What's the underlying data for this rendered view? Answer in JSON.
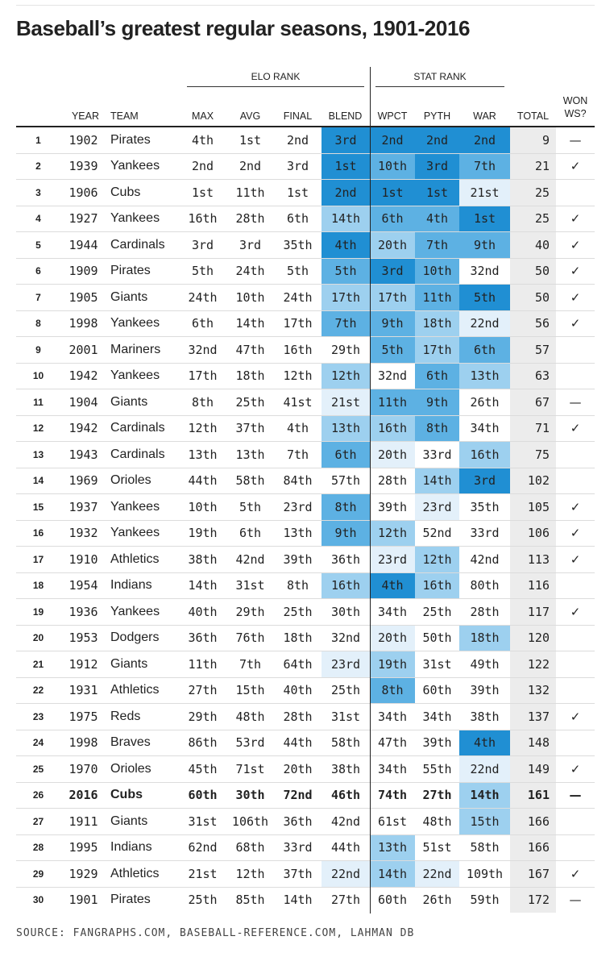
{
  "title": "Baseball’s greatest regular seasons, 1901-2016",
  "groups": {
    "elo": "ELO RANK",
    "stat": "STAT RANK"
  },
  "headers": {
    "year": "YEAR",
    "team": "TEAM",
    "max": "MAX",
    "avg": "AVG",
    "final": "FINAL",
    "blend": "BLEND",
    "wpct": "WPCT",
    "pyth": "PYTH",
    "war": "WAR",
    "total": "TOTAL",
    "won_ws": "WON\nWS?"
  },
  "shade_colors": [
    "#ffffff",
    "#e3f0fa",
    "#9dd0ef",
    "#5db1e3",
    "#208fd3"
  ],
  "rows": [
    {
      "rank": "1",
      "year": "1902",
      "team": "Pirates",
      "max": "4th",
      "avg": "1st",
      "final": "2nd",
      "blend": "3rd",
      "wpct": "2nd",
      "pyth": "2nd",
      "war": "2nd",
      "total": "9",
      "ws": "—",
      "shade": [
        4,
        4,
        4,
        4
      ]
    },
    {
      "rank": "2",
      "year": "1939",
      "team": "Yankees",
      "max": "2nd",
      "avg": "2nd",
      "final": "3rd",
      "blend": "1st",
      "wpct": "10th",
      "pyth": "3rd",
      "war": "7th",
      "total": "21",
      "ws": "✓",
      "shade": [
        4,
        3,
        4,
        3
      ]
    },
    {
      "rank": "3",
      "year": "1906",
      "team": "Cubs",
      "max": "1st",
      "avg": "11th",
      "final": "1st",
      "blend": "2nd",
      "wpct": "1st",
      "pyth": "1st",
      "war": "21st",
      "total": "25",
      "ws": "",
      "shade": [
        4,
        4,
        4,
        1
      ]
    },
    {
      "rank": "4",
      "year": "1927",
      "team": "Yankees",
      "max": "16th",
      "avg": "28th",
      "final": "6th",
      "blend": "14th",
      "wpct": "6th",
      "pyth": "4th",
      "war": "1st",
      "total": "25",
      "ws": "✓",
      "shade": [
        2,
        3,
        3,
        4
      ]
    },
    {
      "rank": "5",
      "year": "1944",
      "team": "Cardinals",
      "max": "3rd",
      "avg": "3rd",
      "final": "35th",
      "blend": "4th",
      "wpct": "20th",
      "pyth": "7th",
      "war": "9th",
      "total": "40",
      "ws": "✓",
      "shade": [
        4,
        2,
        3,
        3
      ]
    },
    {
      "rank": "6",
      "year": "1909",
      "team": "Pirates",
      "max": "5th",
      "avg": "24th",
      "final": "5th",
      "blend": "5th",
      "wpct": "3rd",
      "pyth": "10th",
      "war": "32nd",
      "total": "50",
      "ws": "✓",
      "shade": [
        3,
        4,
        3,
        0
      ]
    },
    {
      "rank": "7",
      "year": "1905",
      "team": "Giants",
      "max": "24th",
      "avg": "10th",
      "final": "24th",
      "blend": "17th",
      "wpct": "17th",
      "pyth": "11th",
      "war": "5th",
      "total": "50",
      "ws": "✓",
      "shade": [
        2,
        2,
        3,
        4
      ]
    },
    {
      "rank": "8",
      "year": "1998",
      "team": "Yankees",
      "max": "6th",
      "avg": "14th",
      "final": "17th",
      "blend": "7th",
      "wpct": "9th",
      "pyth": "18th",
      "war": "22nd",
      "total": "56",
      "ws": "✓",
      "shade": [
        3,
        3,
        2,
        1
      ]
    },
    {
      "rank": "9",
      "year": "2001",
      "team": "Mariners",
      "max": "32nd",
      "avg": "47th",
      "final": "16th",
      "blend": "29th",
      "wpct": "5th",
      "pyth": "17th",
      "war": "6th",
      "total": "57",
      "ws": "",
      "shade": [
        0,
        3,
        2,
        3
      ]
    },
    {
      "rank": "10",
      "year": "1942",
      "team": "Yankees",
      "max": "17th",
      "avg": "18th",
      "final": "12th",
      "blend": "12th",
      "wpct": "32nd",
      "pyth": "6th",
      "war": "13th",
      "total": "63",
      "ws": "",
      "shade": [
        2,
        0,
        3,
        2
      ]
    },
    {
      "rank": "11",
      "year": "1904",
      "team": "Giants",
      "max": "8th",
      "avg": "25th",
      "final": "41st",
      "blend": "21st",
      "wpct": "11th",
      "pyth": "9th",
      "war": "26th",
      "total": "67",
      "ws": "—",
      "shade": [
        1,
        3,
        3,
        0
      ]
    },
    {
      "rank": "12",
      "year": "1942",
      "team": "Cardinals",
      "max": "12th",
      "avg": "37th",
      "final": "4th",
      "blend": "13th",
      "wpct": "16th",
      "pyth": "8th",
      "war": "34th",
      "total": "71",
      "ws": "✓",
      "shade": [
        2,
        2,
        3,
        0
      ]
    },
    {
      "rank": "13",
      "year": "1943",
      "team": "Cardinals",
      "max": "13th",
      "avg": "13th",
      "final": "7th",
      "blend": "6th",
      "wpct": "20th",
      "pyth": "33rd",
      "war": "16th",
      "total": "75",
      "ws": "",
      "shade": [
        3,
        1,
        0,
        2
      ]
    },
    {
      "rank": "14",
      "year": "1969",
      "team": "Orioles",
      "max": "44th",
      "avg": "58th",
      "final": "84th",
      "blend": "57th",
      "wpct": "28th",
      "pyth": "14th",
      "war": "3rd",
      "total": "102",
      "ws": "",
      "shade": [
        0,
        0,
        2,
        4
      ]
    },
    {
      "rank": "15",
      "year": "1937",
      "team": "Yankees",
      "max": "10th",
      "avg": "5th",
      "final": "23rd",
      "blend": "8th",
      "wpct": "39th",
      "pyth": "23rd",
      "war": "35th",
      "total": "105",
      "ws": "✓",
      "shade": [
        3,
        0,
        1,
        0
      ]
    },
    {
      "rank": "16",
      "year": "1932",
      "team": "Yankees",
      "max": "19th",
      "avg": "6th",
      "final": "13th",
      "blend": "9th",
      "wpct": "12th",
      "pyth": "52nd",
      "war": "33rd",
      "total": "106",
      "ws": "✓",
      "shade": [
        3,
        2,
        0,
        0
      ]
    },
    {
      "rank": "17",
      "year": "1910",
      "team": "Athletics",
      "max": "38th",
      "avg": "42nd",
      "final": "39th",
      "blend": "36th",
      "wpct": "23rd",
      "pyth": "12th",
      "war": "42nd",
      "total": "113",
      "ws": "✓",
      "shade": [
        0,
        1,
        2,
        0
      ]
    },
    {
      "rank": "18",
      "year": "1954",
      "team": "Indians",
      "max": "14th",
      "avg": "31st",
      "final": "8th",
      "blend": "16th",
      "wpct": "4th",
      "pyth": "16th",
      "war": "80th",
      "total": "116",
      "ws": "",
      "shade": [
        2,
        4,
        2,
        0
      ]
    },
    {
      "rank": "19",
      "year": "1936",
      "team": "Yankees",
      "max": "40th",
      "avg": "29th",
      "final": "25th",
      "blend": "30th",
      "wpct": "34th",
      "pyth": "25th",
      "war": "28th",
      "total": "117",
      "ws": "✓",
      "shade": [
        0,
        0,
        0,
        0
      ]
    },
    {
      "rank": "20",
      "year": "1953",
      "team": "Dodgers",
      "max": "36th",
      "avg": "76th",
      "final": "18th",
      "blend": "32nd",
      "wpct": "20th",
      "pyth": "50th",
      "war": "18th",
      "total": "120",
      "ws": "",
      "shade": [
        0,
        1,
        0,
        2
      ]
    },
    {
      "rank": "21",
      "year": "1912",
      "team": "Giants",
      "max": "11th",
      "avg": "7th",
      "final": "64th",
      "blend": "23rd",
      "wpct": "19th",
      "pyth": "31st",
      "war": "49th",
      "total": "122",
      "ws": "",
      "shade": [
        1,
        2,
        0,
        0
      ]
    },
    {
      "rank": "22",
      "year": "1931",
      "team": "Athletics",
      "max": "27th",
      "avg": "15th",
      "final": "40th",
      "blend": "25th",
      "wpct": "8th",
      "pyth": "60th",
      "war": "39th",
      "total": "132",
      "ws": "",
      "shade": [
        0,
        3,
        0,
        0
      ]
    },
    {
      "rank": "23",
      "year": "1975",
      "team": "Reds",
      "max": "29th",
      "avg": "48th",
      "final": "28th",
      "blend": "31st",
      "wpct": "34th",
      "pyth": "34th",
      "war": "38th",
      "total": "137",
      "ws": "✓",
      "shade": [
        0,
        0,
        0,
        0
      ]
    },
    {
      "rank": "24",
      "year": "1998",
      "team": "Braves",
      "max": "86th",
      "avg": "53rd",
      "final": "44th",
      "blend": "58th",
      "wpct": "47th",
      "pyth": "39th",
      "war": "4th",
      "total": "148",
      "ws": "",
      "shade": [
        0,
        0,
        0,
        4
      ]
    },
    {
      "rank": "25",
      "year": "1970",
      "team": "Orioles",
      "max": "45th",
      "avg": "71st",
      "final": "20th",
      "blend": "38th",
      "wpct": "34th",
      "pyth": "55th",
      "war": "22nd",
      "total": "149",
      "ws": "✓",
      "shade": [
        0,
        0,
        0,
        1
      ]
    },
    {
      "rank": "26",
      "year": "2016",
      "team": "Cubs",
      "max": "60th",
      "avg": "30th",
      "final": "72nd",
      "blend": "46th",
      "wpct": "74th",
      "pyth": "27th",
      "war": "14th",
      "total": "161",
      "ws": "—",
      "shade": [
        0,
        0,
        0,
        2
      ],
      "highlight": true
    },
    {
      "rank": "27",
      "year": "1911",
      "team": "Giants",
      "max": "31st",
      "avg": "106th",
      "final": "36th",
      "blend": "42nd",
      "wpct": "61st",
      "pyth": "48th",
      "war": "15th",
      "total": "166",
      "ws": "",
      "shade": [
        0,
        0,
        0,
        2
      ]
    },
    {
      "rank": "28",
      "year": "1995",
      "team": "Indians",
      "max": "62nd",
      "avg": "68th",
      "final": "33rd",
      "blend": "44th",
      "wpct": "13th",
      "pyth": "51st",
      "war": "58th",
      "total": "166",
      "ws": "",
      "shade": [
        0,
        2,
        0,
        0
      ]
    },
    {
      "rank": "29",
      "year": "1929",
      "team": "Athletics",
      "max": "21st",
      "avg": "12th",
      "final": "37th",
      "blend": "22nd",
      "wpct": "14th",
      "pyth": "22nd",
      "war": "109th",
      "total": "167",
      "ws": "✓",
      "shade": [
        1,
        2,
        1,
        0
      ]
    },
    {
      "rank": "30",
      "year": "1901",
      "team": "Pirates",
      "max": "25th",
      "avg": "85th",
      "final": "14th",
      "blend": "27th",
      "wpct": "60th",
      "pyth": "26th",
      "war": "59th",
      "total": "172",
      "ws": "—",
      "shade": [
        0,
        0,
        0,
        0
      ]
    }
  ],
  "source": "SOURCE: FANGRAPHS.COM, BASEBALL-REFERENCE.COM, LAHMAN DB"
}
